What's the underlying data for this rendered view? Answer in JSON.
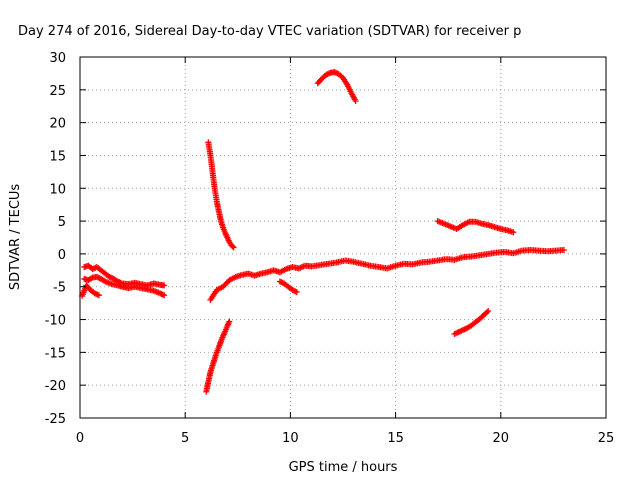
{
  "chart_data": {
    "type": "scatter",
    "title": "Day 274 of 2016, Sidereal Day-to-day VTEC variation (SDTVAR) for receiver p",
    "xlabel": "GPS time / hours",
    "ylabel": "SDTVAR / TECUs",
    "xlim": [
      0,
      25
    ],
    "ylim": [
      -25,
      30
    ],
    "xticks": [
      0,
      5,
      10,
      15,
      20,
      25
    ],
    "yticks": [
      -25,
      -20,
      -15,
      -10,
      -5,
      0,
      5,
      10,
      15,
      20,
      25,
      30
    ],
    "grid": true,
    "marker": "+",
    "color": "#ff0000",
    "series": [
      {
        "x": [
          0.2,
          0.4,
          0.6,
          0.8,
          1.0,
          1.2,
          1.4,
          1.6,
          1.8,
          2.0,
          2.3,
          2.6,
          2.9,
          3.2,
          3.5,
          3.8,
          4.0
        ],
        "y": [
          -2.0,
          -1.8,
          -2.3,
          -2.0,
          -2.5,
          -3.0,
          -3.5,
          -3.8,
          -4.2,
          -4.5,
          -4.6,
          -4.4,
          -4.6,
          -4.8,
          -4.5,
          -4.7,
          -4.8
        ]
      },
      {
        "x": [
          0.2,
          0.4,
          0.6,
          0.8,
          1.0,
          1.2,
          1.5,
          1.8,
          2.0,
          2.3,
          2.6,
          2.9,
          3.2,
          3.5,
          3.8,
          4.0
        ],
        "y": [
          -3.8,
          -4.0,
          -3.6,
          -3.5,
          -3.8,
          -4.2,
          -4.6,
          -4.8,
          -5.0,
          -5.2,
          -5.0,
          -5.2,
          -5.4,
          -5.6,
          -6.0,
          -6.3
        ]
      },
      {
        "x": [
          0.1,
          0.3,
          0.5,
          0.7,
          0.9
        ],
        "y": [
          -6.4,
          -4.8,
          -5.5,
          -6.0,
          -6.3
        ]
      },
      {
        "x": [
          6.1,
          6.2,
          6.3,
          6.4,
          6.5,
          6.6,
          6.7,
          6.8,
          6.9,
          7.0,
          7.1,
          7.2,
          7.3
        ],
        "y": [
          17.0,
          15.0,
          12.5,
          10.0,
          8.0,
          6.5,
          5.0,
          4.0,
          3.2,
          2.5,
          1.8,
          1.3,
          1.0
        ]
      },
      {
        "x": [
          6.0,
          6.1,
          6.2,
          6.3,
          6.4,
          6.5,
          6.6,
          6.7,
          6.8,
          6.9,
          7.0,
          7.1
        ],
        "y": [
          -21.0,
          -19.5,
          -18.0,
          -17.0,
          -16.0,
          -15.0,
          -14.2,
          -13.3,
          -12.5,
          -11.8,
          -11.0,
          -10.3
        ]
      },
      {
        "x": [
          6.2,
          6.5,
          6.8,
          7.1,
          7.4,
          7.7,
          8.0,
          8.3,
          8.6,
          8.9,
          9.2,
          9.5,
          9.8,
          10.1,
          10.4,
          10.7,
          11.0,
          11.4,
          11.8,
          12.2,
          12.6,
          13.0,
          13.4,
          13.8,
          14.2,
          14.6,
          15.0,
          15.4,
          15.8,
          16.2,
          16.6,
          17.0,
          17.4,
          17.8,
          18.2,
          18.6,
          19.0,
          19.4,
          19.8,
          20.2,
          20.6,
          21.0,
          21.4,
          21.8,
          22.2,
          22.6,
          23.0
        ],
        "y": [
          -7.0,
          -5.5,
          -5.0,
          -4.0,
          -3.5,
          -3.2,
          -3.0,
          -3.3,
          -3.0,
          -2.8,
          -2.5,
          -2.8,
          -2.3,
          -2.0,
          -2.2,
          -1.8,
          -1.9,
          -1.7,
          -1.5,
          -1.3,
          -1.0,
          -1.2,
          -1.5,
          -1.8,
          -2.0,
          -2.2,
          -1.8,
          -1.5,
          -1.6,
          -1.3,
          -1.2,
          -1.0,
          -0.8,
          -0.9,
          -0.5,
          -0.4,
          -0.2,
          0.0,
          0.2,
          0.3,
          0.1,
          0.5,
          0.6,
          0.5,
          0.4,
          0.5,
          0.6
        ]
      },
      {
        "x": [
          9.5,
          9.7,
          9.9,
          10.1,
          10.3
        ],
        "y": [
          -4.2,
          -4.5,
          -5.0,
          -5.5,
          -5.8
        ]
      },
      {
        "x": [
          11.3,
          11.5,
          11.7,
          11.9,
          12.1,
          12.3,
          12.5,
          12.7,
          12.9,
          13.1
        ],
        "y": [
          26.0,
          26.7,
          27.3,
          27.6,
          27.7,
          27.4,
          26.8,
          25.8,
          24.5,
          23.3
        ]
      },
      {
        "x": [
          17.0,
          17.3,
          17.6,
          17.9,
          18.2,
          18.5,
          18.8,
          19.1,
          19.4,
          19.7,
          20.0,
          20.3,
          20.6
        ],
        "y": [
          5.0,
          4.6,
          4.2,
          3.8,
          4.4,
          4.9,
          4.9,
          4.6,
          4.4,
          4.1,
          3.8,
          3.6,
          3.3
        ]
      },
      {
        "x": [
          17.8,
          18.0,
          18.2,
          18.4,
          18.6,
          18.8,
          19.0,
          19.2,
          19.4
        ],
        "y": [
          -12.2,
          -11.9,
          -11.6,
          -11.3,
          -10.9,
          -10.4,
          -9.9,
          -9.3,
          -8.7
        ]
      }
    ]
  }
}
